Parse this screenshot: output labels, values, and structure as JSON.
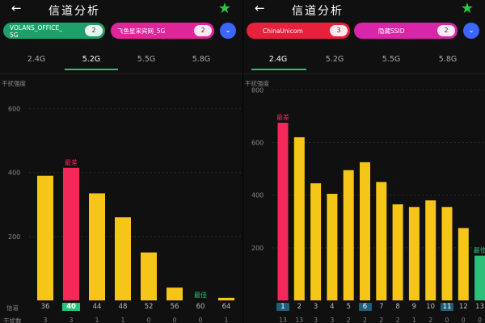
{
  "left": {
    "back_icon": "←",
    "title": "信道分析",
    "star_icon": "★",
    "ssids": [
      {
        "name": "VOLANS_OFFICE_\n5G",
        "count": "2",
        "color": "#1fa06a"
      },
      {
        "name": "飞鱼星来宾网_5G",
        "count": "2",
        "color": "#e0249a"
      }
    ],
    "expand_icon": "⌄",
    "bands": [
      "2.4G",
      "5.2G",
      "5.5G",
      "5.8G"
    ],
    "active_band": "5.2G",
    "y_axis_label": "干扰强度",
    "row_label": "信道",
    "count_label": "干扰数",
    "chart_data": {
      "type": "bar",
      "ylim": [
        0,
        700
      ],
      "yticks": [
        200,
        400,
        600
      ],
      "categories": [
        "36",
        "40",
        "44",
        "48",
        "52",
        "56",
        "60",
        "64"
      ],
      "values": [
        390,
        415,
        335,
        260,
        150,
        40,
        0,
        8
      ],
      "counts": [
        "3",
        "3",
        "1",
        "1",
        "0",
        "0",
        "0",
        "1"
      ],
      "worst_label": "最差",
      "worst_index": 1,
      "best_label": "最佳",
      "best_index": 6,
      "colors": {
        "normal": "#f5c518",
        "worst": "#f5285a",
        "best": "#2dc07a"
      }
    }
  },
  "right": {
    "back_icon": "←",
    "title": "信道分析",
    "star_icon": "★",
    "ssids": [
      {
        "name": "ChinaUnicom",
        "count": "3",
        "color": "#e8203c"
      },
      {
        "name": "隐藏SSID",
        "count": "2",
        "color": "#d926a8"
      }
    ],
    "expand_icon": "⌄",
    "bands": [
      "2.4G",
      "5.2G",
      "5.5G",
      "5.8G"
    ],
    "active_band": "2.4G",
    "y_axis_label": "干扰强度",
    "chart_data": {
      "type": "bar",
      "ylim": [
        0,
        850
      ],
      "yticks": [
        200,
        400,
        600,
        800
      ],
      "categories": [
        "1",
        "2",
        "3",
        "4",
        "5",
        "6",
        "7",
        "8",
        "9",
        "10",
        "11",
        "12",
        "13"
      ],
      "values": [
        675,
        620,
        445,
        405,
        495,
        525,
        450,
        365,
        355,
        380,
        355,
        275,
        170
      ],
      "counts": [
        "13",
        "13",
        "3",
        "3",
        "2",
        "2",
        "2",
        "2",
        "1",
        "2",
        "0",
        "0",
        "0"
      ],
      "worst_label": "最差",
      "worst_index": 0,
      "best_label": "最佳",
      "best_index": 12,
      "highlight_indices": [
        0,
        5,
        10
      ],
      "colors": {
        "normal": "#f5c518",
        "worst": "#f5285a",
        "best": "#2dc07a"
      }
    }
  }
}
